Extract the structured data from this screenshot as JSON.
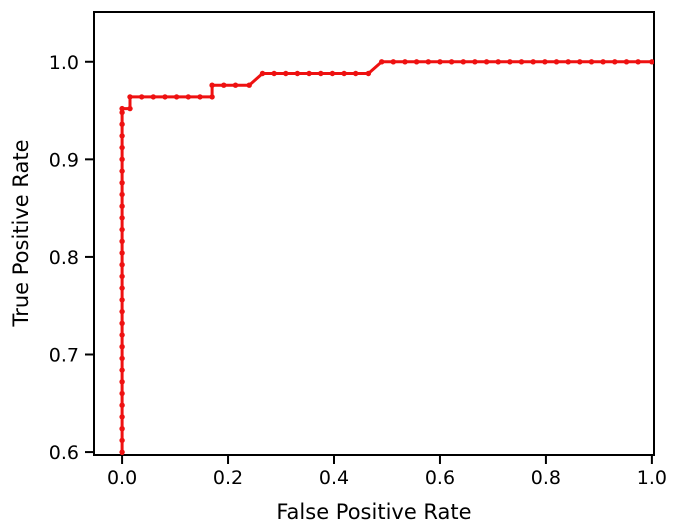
{
  "figure": {
    "background": "#ffffff",
    "border_color": "#000000"
  },
  "chart_data": {
    "type": "line",
    "subtype": "roc-step-curve",
    "title": "",
    "xlabel": "False Positive Rate",
    "ylabel": "True Positive Rate",
    "grid": false,
    "legend": false,
    "line_color": "#ee1111",
    "marker_style": "dot",
    "xlim": [
      -0.053,
      1.004
    ],
    "ylim": [
      0.597,
      1.051
    ],
    "xtick_values": [
      0.0,
      0.2,
      0.4,
      0.6,
      0.8,
      1.0
    ],
    "xtick_labels": [
      "0.0",
      "0.2",
      "0.4",
      "0.6",
      "0.8",
      "1.0"
    ],
    "ytick_values": [
      0.6,
      0.7,
      0.8,
      0.9,
      1.0
    ],
    "ytick_labels": [
      "0.6",
      "0.7",
      "0.8",
      "0.9",
      "1.0"
    ],
    "points": [
      [
        0,
        0.552
      ],
      [
        0,
        0.564
      ],
      [
        0,
        0.576
      ],
      [
        0,
        0.588
      ],
      [
        0,
        0.6
      ],
      [
        0,
        0.612
      ],
      [
        0,
        0.624
      ],
      [
        0,
        0.636
      ],
      [
        0,
        0.648
      ],
      [
        0,
        0.66
      ],
      [
        0,
        0.672
      ],
      [
        0,
        0.684
      ],
      [
        0,
        0.696
      ],
      [
        0,
        0.708
      ],
      [
        0,
        0.72
      ],
      [
        0,
        0.732
      ],
      [
        0,
        0.744
      ],
      [
        0,
        0.756
      ],
      [
        0,
        0.768
      ],
      [
        0,
        0.78
      ],
      [
        0,
        0.792
      ],
      [
        0,
        0.804
      ],
      [
        0,
        0.816
      ],
      [
        0,
        0.828
      ],
      [
        0,
        0.84
      ],
      [
        0,
        0.852
      ],
      [
        0,
        0.864
      ],
      [
        0,
        0.876
      ],
      [
        0,
        0.888
      ],
      [
        0,
        0.9
      ],
      [
        0,
        0.912
      ],
      [
        0,
        0.924
      ],
      [
        0,
        0.936
      ],
      [
        0,
        0.948
      ],
      [
        0,
        0.952
      ],
      [
        0.015,
        0.952
      ],
      [
        0.015,
        0.964
      ],
      [
        0.037,
        0.964
      ],
      [
        0.059,
        0.964
      ],
      [
        0.081,
        0.964
      ],
      [
        0.103,
        0.964
      ],
      [
        0.125,
        0.964
      ],
      [
        0.147,
        0.964
      ],
      [
        0.17,
        0.964
      ],
      [
        0.17,
        0.976
      ],
      [
        0.192,
        0.976
      ],
      [
        0.214,
        0.976
      ],
      [
        0.24,
        0.976
      ],
      [
        0.265,
        0.988
      ],
      [
        0.287,
        0.988
      ],
      [
        0.309,
        0.988
      ],
      [
        0.331,
        0.988
      ],
      [
        0.353,
        0.988
      ],
      [
        0.375,
        0.988
      ],
      [
        0.397,
        0.988
      ],
      [
        0.419,
        0.988
      ],
      [
        0.441,
        0.988
      ],
      [
        0.465,
        0.988
      ],
      [
        0.49,
        1.0
      ],
      [
        0.512,
        1.0
      ],
      [
        0.534,
        1.0
      ],
      [
        0.556,
        1.0
      ],
      [
        0.578,
        1.0
      ],
      [
        0.6,
        1.0
      ],
      [
        0.622,
        1.0
      ],
      [
        0.644,
        1.0
      ],
      [
        0.666,
        1.0
      ],
      [
        0.688,
        1.0
      ],
      [
        0.71,
        1.0
      ],
      [
        0.732,
        1.0
      ],
      [
        0.754,
        1.0
      ],
      [
        0.776,
        1.0
      ],
      [
        0.798,
        1.0
      ],
      [
        0.82,
        1.0
      ],
      [
        0.842,
        1.0
      ],
      [
        0.864,
        1.0
      ],
      [
        0.886,
        1.0
      ],
      [
        0.908,
        1.0
      ],
      [
        0.93,
        1.0
      ],
      [
        0.952,
        1.0
      ],
      [
        0.974,
        1.0
      ],
      [
        1.0,
        1.0
      ]
    ]
  }
}
